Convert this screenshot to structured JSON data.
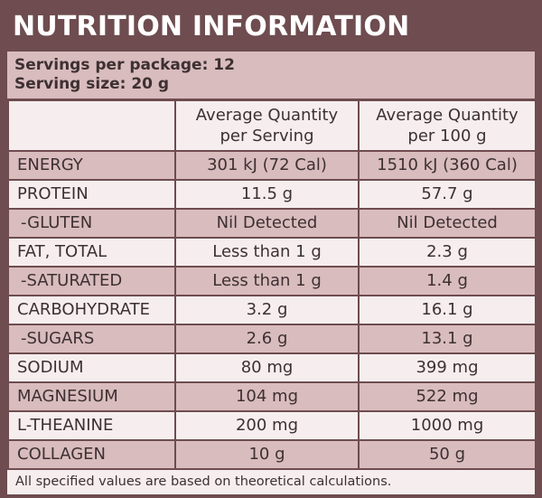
{
  "title": "NUTRITION INFORMATION",
  "servings_per_package": "Servings per package: 12",
  "serving_size": "Serving size: 20 g",
  "columns": {
    "nutrient": "",
    "per_serving_line1": "Average Quantity",
    "per_serving_line2": "per Serving",
    "per_100g_line1": "Average Quantity",
    "per_100g_line2": "per 100 g"
  },
  "rows": [
    {
      "name": "ENERGY",
      "per_serving": "301 kJ (72 Cal)",
      "per_100g": "1510 kJ (360 Cal)"
    },
    {
      "name": "PROTEIN",
      "per_serving": "11.5 g",
      "per_100g": "57.7 g"
    },
    {
      "name": "-GLUTEN",
      "per_serving": "Nil Detected",
      "per_100g": "Nil Detected"
    },
    {
      "name": "FAT, TOTAL",
      "per_serving": "Less than 1 g",
      "per_100g": "2.3 g"
    },
    {
      "name": "-SATURATED",
      "per_serving": "Less than 1 g",
      "per_100g": "1.4 g"
    },
    {
      "name": "CARBOHYDRATE",
      "per_serving": "3.2 g",
      "per_100g": "16.1 g"
    },
    {
      "name": "-SUGARS",
      "per_serving": "2.6 g",
      "per_100g": "13.1 g"
    },
    {
      "name": "SODIUM",
      "per_serving": "80 mg",
      "per_100g": "399 mg"
    },
    {
      "name": "MAGNESIUM",
      "per_serving": "104 mg",
      "per_100g": "522 mg"
    },
    {
      "name": "L-THEANINE",
      "per_serving": "200 mg",
      "per_100g": "1000 mg"
    },
    {
      "name": "COLLAGEN",
      "per_serving": "10 g",
      "per_100g": "50 g"
    }
  ],
  "footnote": "All specified values are based on theoretical calculations.",
  "colors": {
    "frame": "#6e4c4f",
    "shaded_row": "#d9bcbd",
    "light_row": "#f6eeee",
    "text": "#3d3033",
    "title_text": "#ffffff"
  }
}
